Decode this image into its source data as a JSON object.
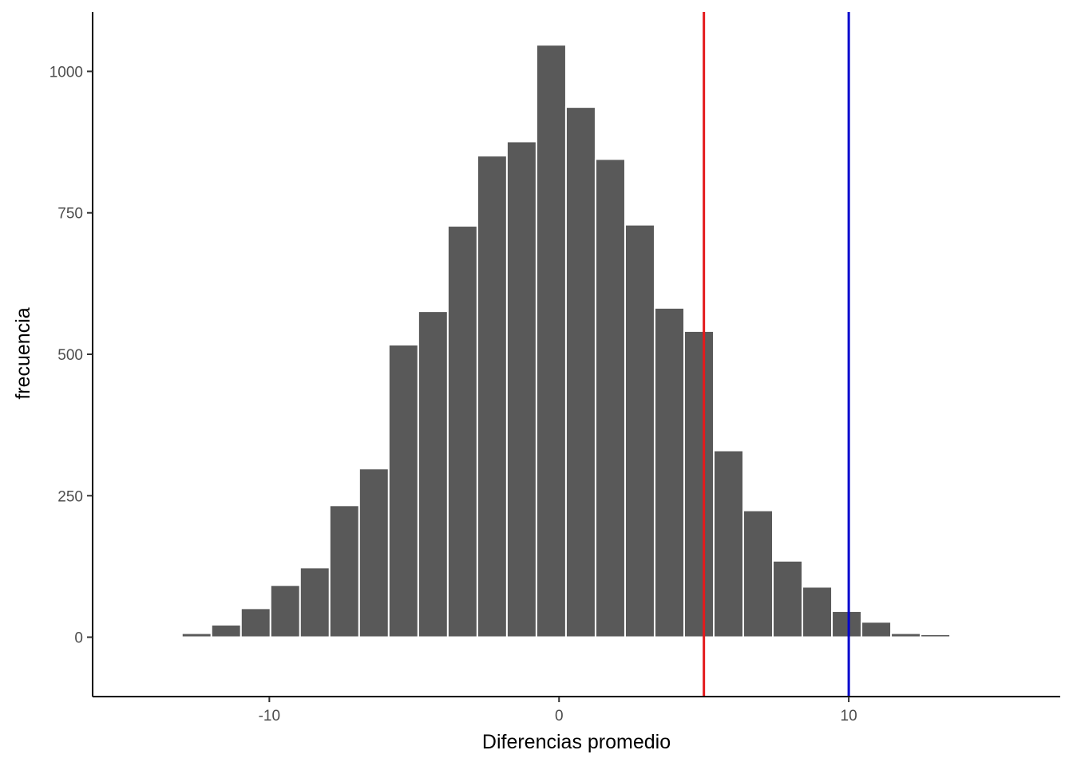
{
  "chart_data": {
    "type": "bar",
    "subtype": "histogram",
    "xlabel": "Diferencias promedio",
    "ylabel": "frecuencia",
    "xlim": [
      -16.1,
      17.3
    ],
    "ylim": [
      -105,
      1105
    ],
    "grid": false,
    "legend": "none",
    "bin_width": 1.02,
    "bins": [
      {
        "x": -14.55,
        "count": 1
      },
      {
        "x": -12.51,
        "count": 7
      },
      {
        "x": -11.49,
        "count": 22
      },
      {
        "x": -10.47,
        "count": 51
      },
      {
        "x": -9.45,
        "count": 92
      },
      {
        "x": -8.43,
        "count": 123
      },
      {
        "x": -7.41,
        "count": 233
      },
      {
        "x": -6.39,
        "count": 298
      },
      {
        "x": -5.37,
        "count": 517
      },
      {
        "x": -4.35,
        "count": 576
      },
      {
        "x": -3.33,
        "count": 727
      },
      {
        "x": -2.31,
        "count": 851
      },
      {
        "x": -1.29,
        "count": 876
      },
      {
        "x": -0.27,
        "count": 1047
      },
      {
        "x": 0.75,
        "count": 937
      },
      {
        "x": 1.77,
        "count": 845
      },
      {
        "x": 2.79,
        "count": 729
      },
      {
        "x": 3.81,
        "count": 582
      },
      {
        "x": 4.83,
        "count": 541
      },
      {
        "x": 5.85,
        "count": 330
      },
      {
        "x": 6.87,
        "count": 224
      },
      {
        "x": 7.89,
        "count": 135
      },
      {
        "x": 8.91,
        "count": 89
      },
      {
        "x": 9.93,
        "count": 46
      },
      {
        "x": 10.95,
        "count": 27
      },
      {
        "x": 11.97,
        "count": 7
      },
      {
        "x": 12.99,
        "count": 5
      }
    ],
    "x_ticks": [
      -10,
      0,
      10
    ],
    "x_tick_labels": [
      "-10",
      "0",
      "10"
    ],
    "y_ticks": [
      0,
      250,
      500,
      750,
      1000
    ],
    "y_tick_labels": [
      "0",
      "250",
      "500",
      "750",
      "1000"
    ],
    "vlines": [
      {
        "x": 5.0,
        "color": "#e41a1c"
      },
      {
        "x": 10.0,
        "color": "#0000cd"
      }
    ],
    "colors": {
      "bar_fill": "#595959",
      "bar_outline": "#ffffff",
      "axis": "#000000"
    }
  }
}
